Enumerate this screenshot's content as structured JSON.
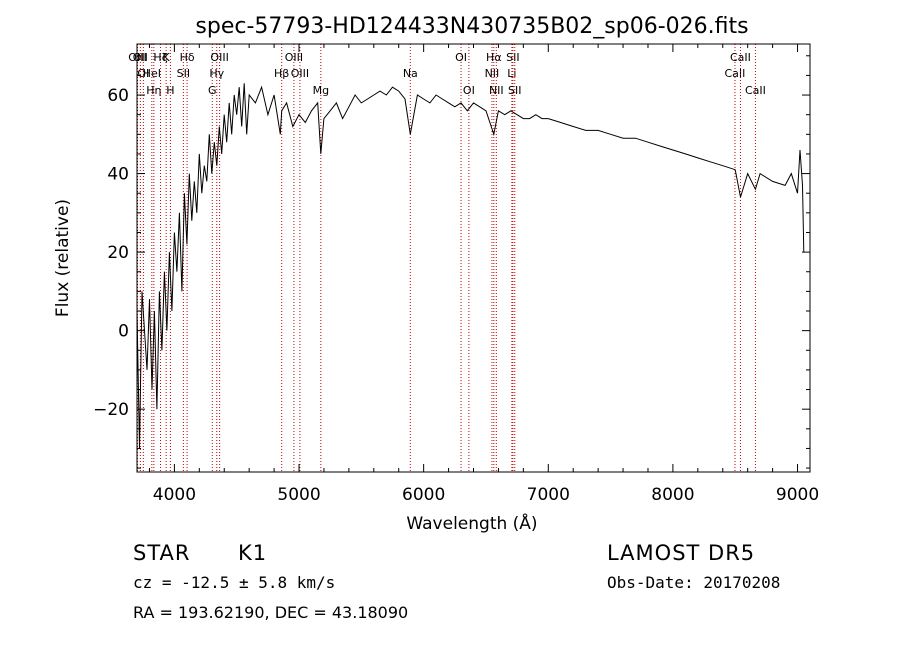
{
  "chart_data": {
    "type": "line",
    "title": "spec-57793-HD124433N430735B02_sp06-026.fits",
    "xlabel": "Wavelength (Å)",
    "ylabel": "Flux (relative)",
    "xlim": [
      3700,
      9100
    ],
    "ylim": [
      -36,
      73
    ],
    "x_ticks": [
      4000,
      5000,
      6000,
      7000,
      8000,
      9000
    ],
    "y_ticks": [
      -20,
      0,
      20,
      40,
      60
    ],
    "grid": false,
    "series": [
      {
        "color": "#000000",
        "x": [
          3700,
          3720,
          3740,
          3760,
          3780,
          3800,
          3820,
          3840,
          3860,
          3880,
          3900,
          3920,
          3940,
          3960,
          3980,
          4000,
          4020,
          4040,
          4060,
          4080,
          4100,
          4120,
          4140,
          4160,
          4180,
          4200,
          4220,
          4240,
          4260,
          4280,
          4300,
          4320,
          4340,
          4360,
          4380,
          4400,
          4420,
          4440,
          4460,
          4480,
          4500,
          4520,
          4540,
          4560,
          4580,
          4600,
          4650,
          4700,
          4750,
          4800,
          4850,
          4861,
          4900,
          4950,
          5000,
          5050,
          5100,
          5150,
          5175,
          5200,
          5250,
          5300,
          5350,
          5400,
          5450,
          5500,
          5550,
          5600,
          5650,
          5700,
          5750,
          5800,
          5850,
          5893,
          5950,
          6000,
          6050,
          6100,
          6150,
          6200,
          6250,
          6300,
          6350,
          6400,
          6450,
          6500,
          6563,
          6600,
          6650,
          6700,
          6750,
          6800,
          6850,
          6900,
          6950,
          7000,
          7100,
          7200,
          7300,
          7400,
          7500,
          7600,
          7700,
          7800,
          7900,
          8000,
          8100,
          8200,
          8300,
          8400,
          8500,
          8542,
          8600,
          8662,
          8700,
          8800,
          8900,
          8950,
          9000,
          9020,
          9040,
          9050
        ],
        "y": [
          5,
          -30,
          10,
          0,
          -10,
          8,
          -15,
          5,
          -20,
          10,
          -5,
          15,
          0,
          20,
          5,
          25,
          15,
          30,
          10,
          35,
          22,
          40,
          28,
          38,
          30,
          45,
          35,
          42,
          38,
          50,
          40,
          48,
          42,
          52,
          45,
          55,
          48,
          58,
          50,
          60,
          55,
          62,
          52,
          63,
          50,
          60,
          58,
          62,
          55,
          60,
          50,
          56,
          58,
          52,
          55,
          53,
          56,
          58,
          45,
          54,
          56,
          58,
          54,
          57,
          60,
          58,
          59,
          60,
          61,
          60,
          62,
          61,
          59,
          50,
          60,
          59,
          58,
          60,
          59,
          58,
          57,
          58,
          56,
          58,
          57,
          56,
          50,
          56,
          55,
          56,
          55,
          54,
          54,
          55,
          54,
          54,
          53,
          52,
          51,
          51,
          50,
          49,
          49,
          48,
          47,
          46,
          45,
          44,
          43,
          42,
          41,
          34,
          40,
          36,
          40,
          38,
          37,
          40,
          35,
          46,
          37,
          20
        ]
      }
    ],
    "line_markers": [
      {
        "wavelength": 3704,
        "labels": [
          "OIII"
        ]
      },
      {
        "wavelength": 3727,
        "labels": [
          "OII"
        ]
      },
      {
        "wavelength": 3751,
        "labels": [
          "",
          "OI"
        ]
      },
      {
        "wavelength": 3819,
        "labels": [
          "",
          "HeI"
        ]
      },
      {
        "wavelength": 3835,
        "labels": [
          "",
          "",
          "Hη"
        ]
      },
      {
        "wavelength": 3889,
        "labels": [
          "Hζ"
        ]
      },
      {
        "wavelength": 3934,
        "labels": [
          "K"
        ]
      },
      {
        "wavelength": 3968,
        "labels": [
          "",
          "",
          "H"
        ]
      },
      {
        "wavelength": 4072,
        "labels": [
          "",
          "SII"
        ]
      },
      {
        "wavelength": 4102,
        "labels": [
          "Hδ"
        ]
      },
      {
        "wavelength": 4304,
        "labels": [
          "",
          "",
          "G"
        ]
      },
      {
        "wavelength": 4340,
        "labels": [
          "",
          "Hγ"
        ]
      },
      {
        "wavelength": 4363,
        "labels": [
          "OIII"
        ]
      },
      {
        "wavelength": 4861,
        "labels": [
          "",
          "Hβ"
        ]
      },
      {
        "wavelength": 4959,
        "labels": [
          "OIII"
        ]
      },
      {
        "wavelength": 5007,
        "labels": [
          "",
          "OIII"
        ]
      },
      {
        "wavelength": 5175,
        "labels": [
          "",
          "",
          "Mg"
        ]
      },
      {
        "wavelength": 5893,
        "labels": [
          "",
          "Na"
        ]
      },
      {
        "wavelength": 6300,
        "labels": [
          "OI"
        ]
      },
      {
        "wavelength": 6363,
        "labels": [
          "",
          "",
          "OI"
        ]
      },
      {
        "wavelength": 6548,
        "labels": [
          "",
          "NII"
        ]
      },
      {
        "wavelength": 6563,
        "labels": [
          "Hα"
        ]
      },
      {
        "wavelength": 6583,
        "labels": [
          "",
          "",
          "NII"
        ]
      },
      {
        "wavelength": 6708,
        "labels": [
          "",
          "Li"
        ]
      },
      {
        "wavelength": 6716,
        "labels": [
          "SII"
        ]
      },
      {
        "wavelength": 6731,
        "labels": [
          "",
          "",
          "SII"
        ]
      },
      {
        "wavelength": 8498,
        "labels": [
          "",
          "CaII"
        ]
      },
      {
        "wavelength": 8542,
        "labels": [
          "CaII"
        ]
      },
      {
        "wavelength": 8662,
        "labels": [
          "",
          "",
          "CaII"
        ]
      }
    ],
    "colors": {
      "spectrum": "#000000",
      "markers": "#c00000",
      "axes": "#000000"
    }
  },
  "info": {
    "object_class": "STAR",
    "subclass": "K1",
    "survey": "LAMOST DR5",
    "redshift_text": "cz = -12.5 ± 5.8 km/s",
    "obs_date": "Obs-Date: 20170208",
    "coords": "RA = 193.62190, DEC =  43.18090"
  }
}
